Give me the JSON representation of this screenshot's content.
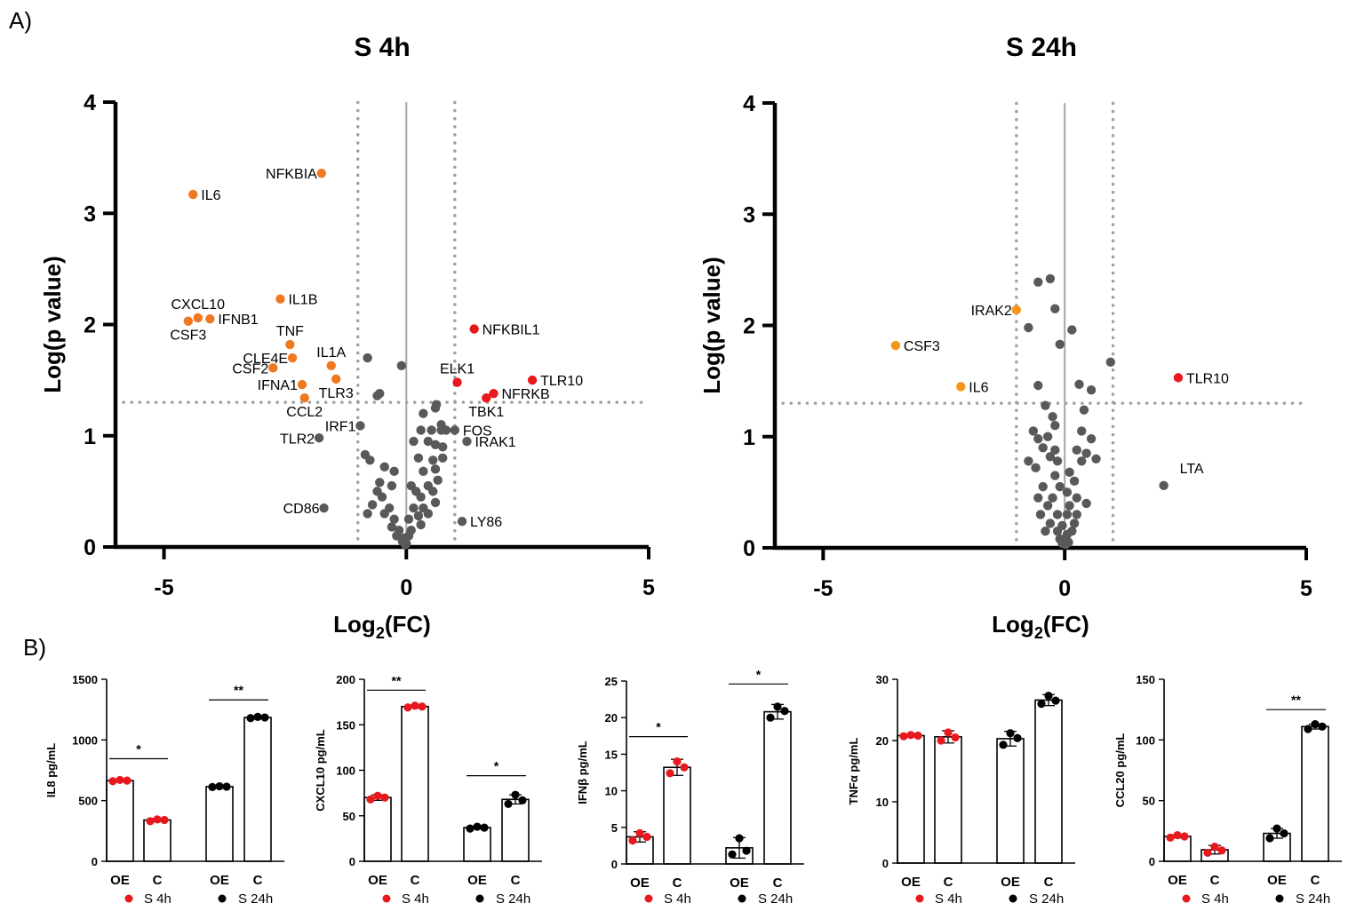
{
  "panel_a_label": "A)",
  "panel_b_label": "B)",
  "chart_data": [
    {
      "type": "scatter",
      "title": "S 4h",
      "xlabel_main": "Log",
      "xlabel_sub": "2",
      "xlabel_rest": "(FC)",
      "ylabel": "Log(p value)",
      "xlim": [
        -6,
        5
      ],
      "ylim": [
        0,
        4
      ],
      "x_ticks": [
        -5,
        0,
        5
      ],
      "x_tick_labels": [
        "-5",
        "0",
        "5"
      ],
      "y_ticks": [
        0,
        1,
        2,
        3,
        4
      ],
      "y_tick_labels": [
        "0",
        "1",
        "2",
        "3",
        "4"
      ],
      "threshold_x": [
        -1,
        1
      ],
      "threshold_y": 1.3,
      "colors": {
        "down": "#f07820",
        "up": "#e8191e",
        "ns": "#595959"
      },
      "labeled_points": [
        {
          "name": "NFKBIA",
          "x": -1.75,
          "y": 3.36,
          "group": "down",
          "anchor": "end"
        },
        {
          "name": "IL6",
          "x": -4.4,
          "y": 3.17,
          "group": "down",
          "anchor": "start"
        },
        {
          "name": "IL1B",
          "x": -2.6,
          "y": 2.23,
          "group": "down",
          "anchor": "start"
        },
        {
          "name": "CXCL10",
          "x": -4.3,
          "y": 2.06,
          "group": "down",
          "anchor": "center-above"
        },
        {
          "name": "IFNB1",
          "x": -4.05,
          "y": 2.05,
          "group": "down",
          "anchor": "start"
        },
        {
          "name": "CSF3",
          "x": -4.5,
          "y": 2.03,
          "group": "down",
          "anchor": "center-below"
        },
        {
          "name": "TNF",
          "x": -2.4,
          "y": 1.82,
          "group": "down",
          "anchor": "center-above"
        },
        {
          "name": "CLE4E",
          "x": -2.35,
          "y": 1.7,
          "group": "down",
          "anchor": "end"
        },
        {
          "name": "IL1A",
          "x": -1.55,
          "y": 1.63,
          "group": "down",
          "anchor": "center-above"
        },
        {
          "name": "CSF2",
          "x": -2.75,
          "y": 1.61,
          "group": "down",
          "anchor": "end"
        },
        {
          "name": "TLR3",
          "x": -1.45,
          "y": 1.51,
          "group": "down",
          "anchor": "center-below"
        },
        {
          "name": "IFNA1",
          "x": -2.15,
          "y": 1.46,
          "group": "down",
          "anchor": "end"
        },
        {
          "name": "CCL2",
          "x": -2.1,
          "y": 1.34,
          "group": "down",
          "anchor": "center-below"
        },
        {
          "name": "NFKBIL1",
          "x": 1.4,
          "y": 1.96,
          "group": "up",
          "anchor": "start"
        },
        {
          "name": "ELK1",
          "x": 1.05,
          "y": 1.48,
          "group": "up",
          "anchor": "center-above"
        },
        {
          "name": "TLR10",
          "x": 2.6,
          "y": 1.5,
          "group": "up",
          "anchor": "start"
        },
        {
          "name": "NFRKB",
          "x": 1.8,
          "y": 1.38,
          "group": "up",
          "anchor": "start"
        },
        {
          "name": "TBK1",
          "x": 1.65,
          "y": 1.34,
          "group": "up",
          "anchor": "center-below"
        },
        {
          "name": "IRF1",
          "x": -0.95,
          "y": 1.09,
          "group": "ns",
          "anchor": "end"
        },
        {
          "name": "TLR2",
          "x": -1.8,
          "y": 0.98,
          "group": "ns",
          "anchor": "end"
        },
        {
          "name": "FOS",
          "x": 1.0,
          "y": 1.05,
          "group": "ns",
          "anchor": "start"
        },
        {
          "name": "IRAK1",
          "x": 1.25,
          "y": 0.95,
          "group": "ns",
          "anchor": "start"
        },
        {
          "name": "CD86",
          "x": -1.7,
          "y": 0.35,
          "group": "ns",
          "anchor": "end"
        },
        {
          "name": "LY86",
          "x": 1.15,
          "y": 0.23,
          "group": "ns",
          "anchor": "start"
        }
      ],
      "ns_points": [
        [
          -0.8,
          1.7
        ],
        [
          -0.1,
          1.63
        ],
        [
          -0.55,
          1.38
        ],
        [
          -0.6,
          1.36
        ],
        [
          0.62,
          1.28
        ],
        [
          0.6,
          1.25
        ],
        [
          0.35,
          1.2
        ],
        [
          0.72,
          1.1
        ],
        [
          0.3,
          1.05
        ],
        [
          0.52,
          1.05
        ],
        [
          0.72,
          1.05
        ],
        [
          0.82,
          1.05
        ],
        [
          0.15,
          0.95
        ],
        [
          0.45,
          0.95
        ],
        [
          0.6,
          0.92
        ],
        [
          0.75,
          0.9
        ],
        [
          -0.85,
          0.83
        ],
        [
          -0.75,
          0.78
        ],
        [
          0.25,
          0.8
        ],
        [
          0.55,
          0.78
        ],
        [
          0.75,
          0.8
        ],
        [
          -0.45,
          0.72
        ],
        [
          -0.25,
          0.68
        ],
        [
          0.35,
          0.68
        ],
        [
          0.6,
          0.7
        ],
        [
          -0.55,
          0.58
        ],
        [
          -0.3,
          0.55
        ],
        [
          0.1,
          0.55
        ],
        [
          0.45,
          0.55
        ],
        [
          0.65,
          0.6
        ],
        [
          -0.6,
          0.5
        ],
        [
          -0.5,
          0.45
        ],
        [
          0.2,
          0.5
        ],
        [
          0.3,
          0.45
        ],
        [
          0.55,
          0.5
        ],
        [
          -0.7,
          0.38
        ],
        [
          -0.35,
          0.35
        ],
        [
          0.15,
          0.35
        ],
        [
          0.35,
          0.35
        ],
        [
          0.6,
          0.4
        ],
        [
          -0.8,
          0.3
        ],
        [
          -0.45,
          0.3
        ],
        [
          -0.25,
          0.25
        ],
        [
          0.05,
          0.25
        ],
        [
          0.25,
          0.28
        ],
        [
          0.45,
          0.3
        ],
        [
          -0.3,
          0.18
        ],
        [
          -0.15,
          0.15
        ],
        [
          0.1,
          0.15
        ],
        [
          0.3,
          0.2
        ],
        [
          -0.2,
          0.1
        ],
        [
          -0.05,
          0.08
        ],
        [
          0.05,
          0.1
        ],
        [
          -0.08,
          0.05
        ],
        [
          0.0,
          0.03
        ],
        [
          -0.02,
          0.02
        ]
      ]
    },
    {
      "type": "scatter",
      "title": "S 24h",
      "xlabel_main": "Log",
      "xlabel_sub": "2",
      "xlabel_rest": "(FC)",
      "ylabel": "Log(p value)",
      "xlim": [
        -6,
        5
      ],
      "ylim": [
        0,
        4
      ],
      "x_ticks": [
        -5,
        0,
        5
      ],
      "x_tick_labels": [
        "-5",
        "0",
        "5"
      ],
      "y_ticks": [
        0,
        1,
        2,
        3,
        4
      ],
      "y_tick_labels": [
        "0",
        "1",
        "2",
        "3",
        "4"
      ],
      "threshold_x": [
        -1,
        1
      ],
      "threshold_y": 1.3,
      "colors": {
        "down": "#f5951e",
        "up": "#e8191e",
        "ns": "#595959"
      },
      "labeled_points": [
        {
          "name": "IRAK2",
          "x": -1.0,
          "y": 2.14,
          "group": "down",
          "anchor": "end"
        },
        {
          "name": "CSF3",
          "x": -3.5,
          "y": 1.82,
          "group": "down",
          "anchor": "start"
        },
        {
          "name": "IL6",
          "x": -2.15,
          "y": 1.45,
          "group": "down",
          "anchor": "start"
        },
        {
          "name": "TLR10",
          "x": 2.35,
          "y": 1.53,
          "group": "up",
          "anchor": "start"
        },
        {
          "name": "LTA",
          "x": 2.05,
          "y": 0.56,
          "group": "ns",
          "anchor": "start-above"
        }
      ],
      "ns_points": [
        [
          -0.3,
          2.42
        ],
        [
          -0.55,
          2.39
        ],
        [
          -0.2,
          2.15
        ],
        [
          -0.75,
          1.98
        ],
        [
          0.15,
          1.96
        ],
        [
          -0.1,
          1.83
        ],
        [
          0.95,
          1.67
        ],
        [
          0.3,
          1.47
        ],
        [
          -0.55,
          1.46
        ],
        [
          0.55,
          1.42
        ],
        [
          -0.4,
          1.28
        ],
        [
          0.4,
          1.24
        ],
        [
          -0.25,
          1.18
        ],
        [
          -0.2,
          1.1
        ],
        [
          -0.35,
          1.0
        ],
        [
          0.35,
          1.05
        ],
        [
          -0.65,
          1.05
        ],
        [
          -0.55,
          0.98
        ],
        [
          0.55,
          0.98
        ],
        [
          -0.45,
          0.9
        ],
        [
          -0.2,
          0.88
        ],
        [
          0.25,
          0.88
        ],
        [
          0.45,
          0.85
        ],
        [
          -0.75,
          0.78
        ],
        [
          -0.3,
          0.82
        ],
        [
          -0.15,
          0.78
        ],
        [
          0.35,
          0.78
        ],
        [
          0.65,
          0.8
        ],
        [
          -0.6,
          0.72
        ],
        [
          -0.2,
          0.65
        ],
        [
          0.1,
          0.68
        ],
        [
          0.2,
          0.6
        ],
        [
          -0.45,
          0.55
        ],
        [
          -0.1,
          0.55
        ],
        [
          0.05,
          0.5
        ],
        [
          -0.55,
          0.45
        ],
        [
          -0.25,
          0.45
        ],
        [
          0.25,
          0.45
        ],
        [
          -0.35,
          0.38
        ],
        [
          0.1,
          0.38
        ],
        [
          0.45,
          0.4
        ],
        [
          -0.5,
          0.3
        ],
        [
          -0.15,
          0.3
        ],
        [
          0.05,
          0.3
        ],
        [
          0.25,
          0.3
        ],
        [
          -0.3,
          0.22
        ],
        [
          -0.05,
          0.2
        ],
        [
          0.2,
          0.22
        ],
        [
          -0.4,
          0.15
        ],
        [
          -0.15,
          0.15
        ],
        [
          0.05,
          0.12
        ],
        [
          0.15,
          0.15
        ],
        [
          -0.1,
          0.08
        ],
        [
          0.0,
          0.06
        ],
        [
          0.08,
          0.05
        ],
        [
          -0.05,
          0.04
        ],
        [
          0.02,
          0.03
        ]
      ]
    },
    {
      "type": "bar",
      "ylabel": "IL8 pg/mL",
      "ylim": [
        0,
        1500
      ],
      "y_ticks": [
        0,
        500,
        1000,
        1500
      ],
      "y_tick_labels": [
        "0",
        "500",
        "1000",
        "1500"
      ],
      "categories": [
        "OE",
        "C",
        "OE",
        "C"
      ],
      "groups": [
        "S 4h",
        "S 4h",
        "S 24h",
        "S 24h"
      ],
      "values": [
        665,
        340,
        615,
        1185
      ],
      "errors": [
        8,
        12,
        5,
        8
      ],
      "points": [
        [
          660,
          670,
          665
        ],
        [
          330,
          345,
          340
        ],
        [
          612,
          618,
          615
        ],
        [
          1180,
          1190,
          1185
        ]
      ],
      "significance": [
        {
          "from": 0,
          "to": 1,
          "label": "*",
          "y": 845
        },
        {
          "from": 2,
          "to": 3,
          "label": "**",
          "y": 1330
        }
      ]
    },
    {
      "type": "bar",
      "ylabel": "CXCL10 pg/mL",
      "ylim": [
        0,
        200
      ],
      "y_ticks": [
        0,
        50,
        100,
        150,
        200
      ],
      "y_tick_labels": [
        "0",
        "50",
        "100",
        "150",
        "200"
      ],
      "categories": [
        "OE",
        "C",
        "OE",
        "C"
      ],
      "groups": [
        "S 4h",
        "S 4h",
        "S 24h",
        "S 24h"
      ],
      "values": [
        70,
        170,
        37,
        68
      ],
      "errors": [
        3,
        1.5,
        1.5,
        5
      ],
      "points": [
        [
          68,
          72,
          70
        ],
        [
          169,
          171,
          170
        ],
        [
          36,
          38,
          37
        ],
        [
          63,
          73,
          67
        ]
      ],
      "significance": [
        {
          "from": 0,
          "to": 1,
          "label": "**",
          "y": 188
        },
        {
          "from": 2,
          "to": 3,
          "label": "*",
          "y": 94
        }
      ]
    },
    {
      "type": "bar",
      "ylabel": "IFNβ pg/mL",
      "ylim": [
        0,
        25
      ],
      "y_ticks": [
        0,
        5,
        10,
        15,
        20,
        25
      ],
      "y_tick_labels": [
        "0",
        "5",
        "10",
        "15",
        "20",
        "25"
      ],
      "categories": [
        "OE",
        "C",
        "OE",
        "C"
      ],
      "groups": [
        "S 4h",
        "S 4h",
        "S 24h",
        "S 24h"
      ],
      "values": [
        3.7,
        13.2,
        2.2,
        20.8
      ],
      "errors": [
        0.7,
        1.1,
        1.4,
        1.0
      ],
      "points": [
        [
          3.2,
          4.2,
          3.7
        ],
        [
          12.4,
          14.0,
          13.2
        ],
        [
          1.3,
          3.5,
          1.8
        ],
        [
          20.0,
          21.5,
          20.9
        ]
      ],
      "significance": [
        {
          "from": 0,
          "to": 1,
          "label": "*",
          "y": 17.4
        },
        {
          "from": 2,
          "to": 3,
          "label": "*",
          "y": 24.6
        }
      ]
    },
    {
      "type": "bar",
      "ylabel": "TNFα pg/mL",
      "ylim": [
        0,
        30
      ],
      "y_ticks": [
        0,
        10,
        20,
        30
      ],
      "y_tick_labels": [
        "0",
        "10",
        "20",
        "30"
      ],
      "categories": [
        "OE",
        "C",
        "OE",
        "C"
      ],
      "groups": [
        "S 4h",
        "S 4h",
        "S 24h",
        "S 24h"
      ],
      "values": [
        20.8,
        20.6,
        20.3,
        26.6
      ],
      "errors": [
        0.2,
        1.0,
        1.2,
        0.9
      ],
      "points": [
        [
          20.7,
          20.9,
          20.8
        ],
        [
          20.0,
          21.3,
          20.5
        ],
        [
          19.3,
          21.2,
          20.4
        ],
        [
          26.0,
          27.3,
          26.5
        ]
      ],
      "significance": []
    },
    {
      "type": "bar",
      "ylabel": "CCL20 pg/mL",
      "ylim": [
        0,
        150
      ],
      "y_ticks": [
        0,
        50,
        100,
        150
      ],
      "y_tick_labels": [
        "0",
        "50",
        "100",
        "150"
      ],
      "categories": [
        "OE",
        "C",
        "OE",
        "C"
      ],
      "groups": [
        "S 4h",
        "S 4h",
        "S 24h",
        "S 24h"
      ],
      "values": [
        20.5,
        9.5,
        23,
        111
      ],
      "errors": [
        1.2,
        3.5,
        4,
        2
      ],
      "points": [
        [
          19.5,
          21.5,
          20.5
        ],
        [
          7,
          12,
          9
        ],
        [
          19,
          27,
          23
        ],
        [
          109,
          113,
          111
        ]
      ],
      "significance": [
        {
          "from": 2,
          "to": 3,
          "label": "**",
          "y": 125
        }
      ]
    }
  ],
  "bar_legend": {
    "group1": "S 4h",
    "group2": "S 24h",
    "group1_color": "#e8191e",
    "group2_color": "#000000"
  }
}
